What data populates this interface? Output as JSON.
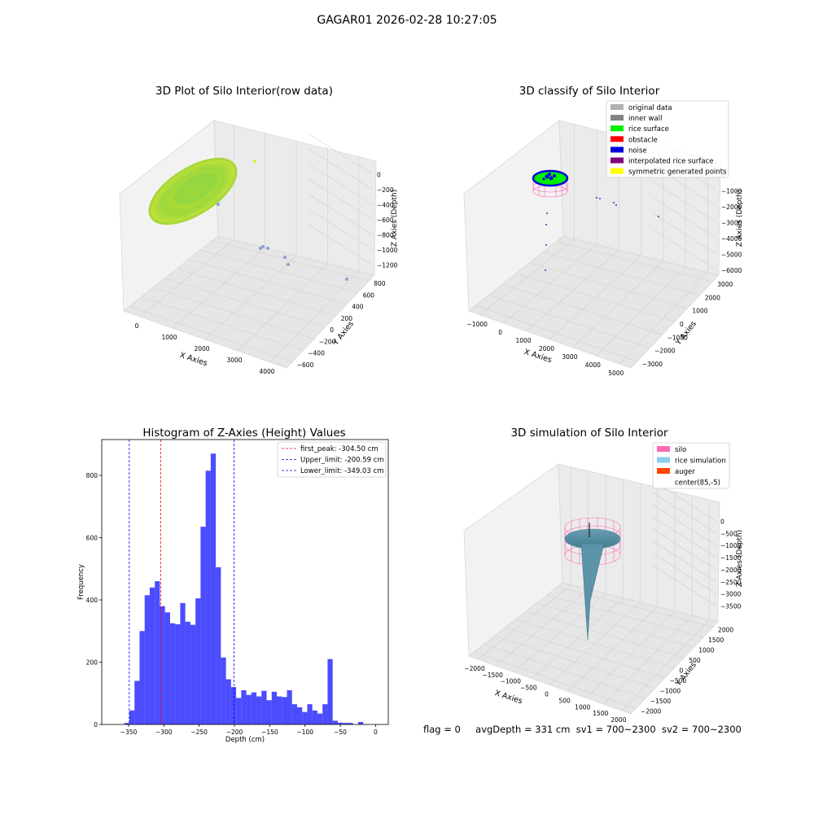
{
  "figure": {
    "suptitle": "GAGAR01 2026-02-28 10:27:05",
    "status": {
      "flag": "flag = 0",
      "avg_depth": "avgDepth = 331 cm",
      "sv1": "sv1 = 700~2300",
      "sv2": "sv2 = 700~2300"
    }
  },
  "chart_data": [
    {
      "type": "scatter3d",
      "title": "3D Plot of Silo Interior(row data)",
      "xlabel": "X Axies",
      "ylabel": "Y Axies",
      "zlabel": "Z Axies (Depth)",
      "x_ticks": [
        "0",
        "1000",
        "2000",
        "3000",
        "4000"
      ],
      "y_ticks": [
        "−600",
        "−400",
        "−200",
        "0",
        "200",
        "400",
        "600",
        "800"
      ],
      "z_ticks": [
        "0",
        "−200",
        "−400",
        "−600",
        "−800",
        "−1000",
        "−1200"
      ],
      "colormap": [
        "#2ab07f",
        "#7fd34e",
        "#c2df23",
        "#fde725"
      ],
      "outliers_color": "#8d9fd6"
    },
    {
      "type": "scatter3d",
      "title": "3D classify of Silo Interior",
      "xlabel": "X Axies",
      "ylabel": "Y Axies",
      "zlabel": "Z Axies (Depth)",
      "x_ticks": [
        "−1000",
        "0",
        "1000",
        "2000",
        "3000",
        "4000",
        "5000"
      ],
      "y_ticks": [
        "−3000",
        "−2000",
        "−1000",
        "0",
        "1000",
        "2000",
        "3000"
      ],
      "z_ticks": [
        "0",
        "−1000",
        "−2000",
        "−3000",
        "−4000",
        "−5000",
        "−6000"
      ],
      "legend": [
        {
          "label": "original data",
          "color": "#b0b0b0"
        },
        {
          "label": "inner wall",
          "color": "#808080"
        },
        {
          "label": "rice surface",
          "color": "#00ee00"
        },
        {
          "label": "obstacle",
          "color": "#ff0000"
        },
        {
          "label": "noise",
          "color": "#0000dd"
        },
        {
          "label": "interpolated rice surface",
          "color": "#800080"
        },
        {
          "label": "symmetric generated points",
          "color": "#ffff00"
        }
      ]
    },
    {
      "type": "bar",
      "title": "Histogram of Z-Axies (Height) Values",
      "xlabel": "Depth (cm)",
      "ylabel": "Frequency",
      "xlim": [
        -388,
        18
      ],
      "ylim": [
        0,
        915
      ],
      "x_ticks": [
        -350,
        -300,
        -250,
        -200,
        -150,
        -100,
        -50,
        0
      ],
      "x_tick_labels": [
        "−350",
        "−300",
        "−250",
        "−200",
        "−150",
        "−100",
        "−50",
        "0"
      ],
      "y_ticks": [
        0,
        200,
        400,
        600,
        800
      ],
      "y_tick_labels": [
        "0",
        "200",
        "400",
        "600",
        "800"
      ],
      "bar_color": "#0000ff",
      "bin_width": 7.2,
      "bin_start": -356,
      "values": [
        5,
        45,
        140,
        300,
        415,
        440,
        460,
        380,
        360,
        325,
        322,
        390,
        330,
        320,
        405,
        635,
        815,
        870,
        505,
        215,
        145,
        120,
        85,
        110,
        95,
        103,
        90,
        108,
        78,
        105,
        90,
        88,
        110,
        65,
        55,
        40,
        65,
        45,
        35,
        65,
        210,
        12,
        6,
        5,
        5,
        0,
        8
      ],
      "lines": [
        {
          "label": "first_peak: -304.50 cm",
          "x": -304.5,
          "color": "#ff0000"
        },
        {
          "label": "Upper_limit: -200.59 cm",
          "x": -200.59,
          "color": "#0000ff"
        },
        {
          "label": "Lower_limit: -349.03 cm",
          "x": -349.03,
          "color": "#0000ff"
        }
      ]
    },
    {
      "type": "surface3d",
      "title": "3D simulation of Silo Interior",
      "xlabel": "X Axies",
      "ylabel": "Y Axies",
      "zlabel": "Z Axies (Depth)",
      "x_ticks": [
        "−2000",
        "−1500",
        "−1000",
        "−500",
        "0",
        "500",
        "1000",
        "1500",
        "2000"
      ],
      "y_ticks": [
        "−2000",
        "−1500",
        "−1000",
        "−500",
        "0",
        "500",
        "1000",
        "1500",
        "2000"
      ],
      "z_ticks": [
        "0",
        "−500",
        "−1000",
        "−1500",
        "−2000",
        "−2500",
        "−3000",
        "−3500"
      ],
      "legend": [
        {
          "label": "silo",
          "color": "#ff69b4"
        },
        {
          "label": "rice simulation",
          "color": "#87ceeb"
        },
        {
          "label": "auger",
          "color": "#ff4500"
        },
        {
          "label": "center(85,-5)",
          "color": "#ffffff"
        }
      ]
    }
  ]
}
